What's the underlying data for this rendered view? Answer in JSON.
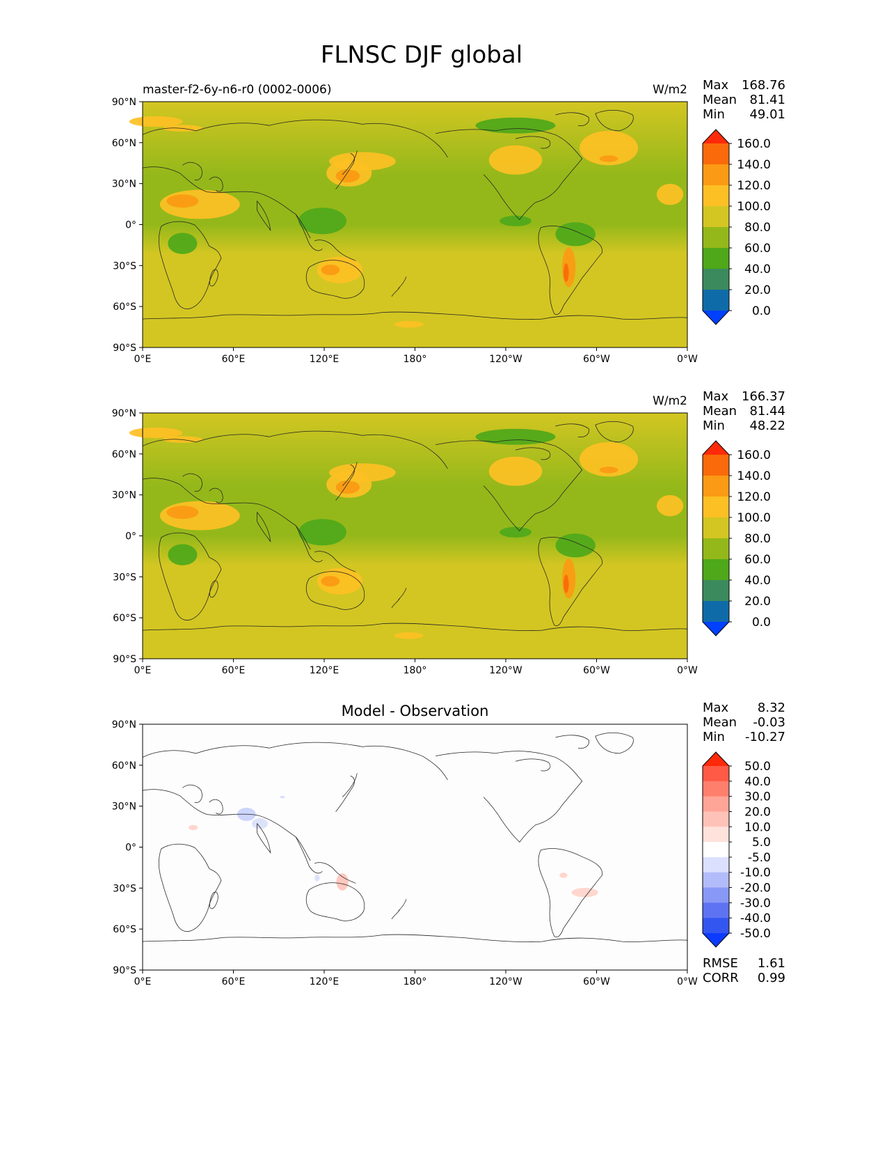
{
  "figure": {
    "title": "FLNSC DJF global"
  },
  "chart_data": [
    {
      "type": "heatmap",
      "panel": "test",
      "title": "master-f2-6y-n6-r0 (0002-0006)",
      "units": "W/m2",
      "stats": [
        {
          "label": "Max",
          "value": "168.76"
        },
        {
          "label": "Mean",
          "value": "81.41"
        },
        {
          "label": "Min",
          "value": "49.01"
        }
      ],
      "colorbar": {
        "levels": [
          "160.0",
          "140.0",
          "120.0",
          "100.0",
          "80.0",
          "60.0",
          "40.0",
          "20.0",
          "0.0"
        ],
        "colors": [
          "#ff2a0a",
          "#fa6a0a",
          "#fb9a14",
          "#fdc024",
          "#d3c622",
          "#94b81a",
          "#4ea81a",
          "#3b8a5d",
          "#0f6ba8",
          "#0040ff"
        ]
      },
      "x_ticks": [
        "0°E",
        "60°E",
        "120°E",
        "180°",
        "120°W",
        "60°W",
        "0°W"
      ],
      "y_ticks": [
        "90°N",
        "60°N",
        "30°N",
        "0°",
        "30°S",
        "60°S",
        "90°S"
      ],
      "xlim": [
        0,
        360
      ],
      "ylim": [
        -90,
        90
      ]
    },
    {
      "type": "heatmap",
      "panel": "reference",
      "title": "",
      "units": "W/m2",
      "stats": [
        {
          "label": "Max",
          "value": "166.37"
        },
        {
          "label": "Mean",
          "value": "81.44"
        },
        {
          "label": "Min",
          "value": "48.22"
        }
      ],
      "colorbar": {
        "levels": [
          "160.0",
          "140.0",
          "120.0",
          "100.0",
          "80.0",
          "60.0",
          "40.0",
          "20.0",
          "0.0"
        ],
        "colors": [
          "#ff2a0a",
          "#fa6a0a",
          "#fb9a14",
          "#fdc024",
          "#d3c622",
          "#94b81a",
          "#4ea81a",
          "#3b8a5d",
          "#0f6ba8",
          "#0040ff"
        ]
      },
      "x_ticks": [
        "0°E",
        "60°E",
        "120°E",
        "180°",
        "120°W",
        "60°W",
        "0°W"
      ],
      "y_ticks": [
        "90°N",
        "60°N",
        "30°N",
        "0°",
        "30°S",
        "60°S",
        "90°S"
      ],
      "xlim": [
        0,
        360
      ],
      "ylim": [
        -90,
        90
      ]
    },
    {
      "type": "heatmap",
      "panel": "difference",
      "title": "Model - Observation",
      "units": "",
      "stats": [
        {
          "label": "Max",
          "value": "8.32"
        },
        {
          "label": "Mean",
          "value": "-0.03"
        },
        {
          "label": "Min",
          "value": "-10.27"
        }
      ],
      "metrics": [
        {
          "label": "RMSE",
          "value": "1.61"
        },
        {
          "label": "CORR",
          "value": "0.99"
        }
      ],
      "colorbar": {
        "levels": [
          "50.0",
          "40.0",
          "30.0",
          "20.0",
          "10.0",
          "5.0",
          "-5.0",
          "-10.0",
          "-20.0",
          "-30.0",
          "-40.0",
          "-50.0"
        ],
        "colors": [
          "#ff2a0a",
          "#ff5a45",
          "#ff7f6d",
          "#ffa597",
          "#ffc2b8",
          "#ffe2dc",
          "#ffffff",
          "#dce0ff",
          "#b3bcfa",
          "#8898f5",
          "#5d73f2",
          "#3456f0",
          "#0c3bff"
        ]
      },
      "x_ticks": [
        "0°E",
        "60°E",
        "120°E",
        "180°",
        "120°W",
        "60°W",
        "0°W"
      ],
      "y_ticks": [
        "90°N",
        "60°N",
        "30°N",
        "0°",
        "30°S",
        "60°S",
        "90°S"
      ],
      "xlim": [
        0,
        360
      ],
      "ylim": [
        -90,
        90
      ]
    }
  ]
}
